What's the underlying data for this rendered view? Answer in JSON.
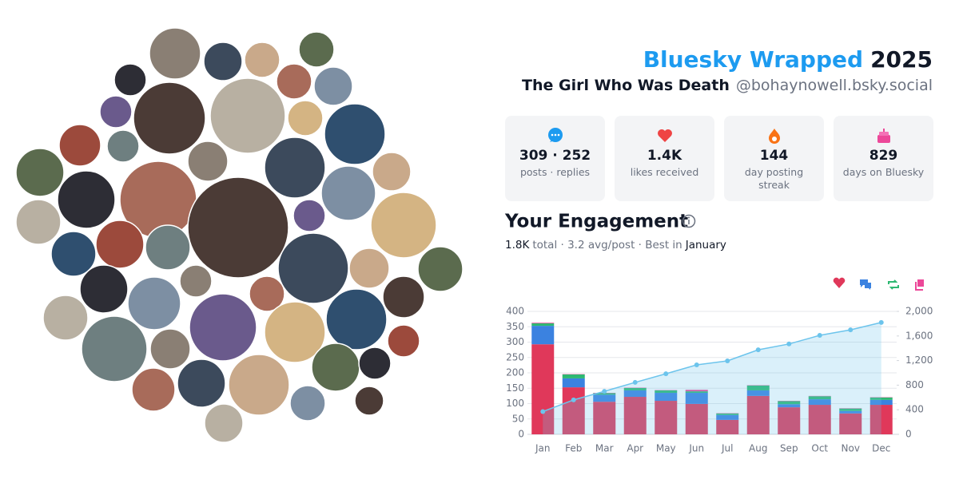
{
  "header": {
    "title_brand": "Bluesky Wrapped",
    "title_year": "2025",
    "display_name": "The Girl Who Was Death",
    "handle": "@bohaynowell.bsky.social"
  },
  "stats": [
    {
      "value": "309 · 252",
      "label": "posts · replies"
    },
    {
      "value": "1.4K",
      "label": "likes received"
    },
    {
      "value": "144",
      "label": "day posting streak"
    },
    {
      "value": "829",
      "label": "days on Bluesky"
    }
  ],
  "engagement": {
    "title": "Your Engagement",
    "total": "1.8K",
    "summary": "total · 3.2 avg/post · Best in",
    "best": "January"
  },
  "chart_data": {
    "type": "bar",
    "stacked": true,
    "categories": [
      "Jan",
      "Feb",
      "Mar",
      "Apr",
      "May",
      "Jun",
      "Jul",
      "Aug",
      "Sep",
      "Oct",
      "Nov",
      "Dec"
    ],
    "series": [
      {
        "color": "#e0385a",
        "values": [
          293,
          153,
          106,
          122,
          109,
          99,
          47,
          125,
          88,
          96,
          68,
          96
        ]
      },
      {
        "color": "#3b82e0",
        "values": [
          60,
          29,
          23,
          21,
          26,
          36,
          16,
          18,
          10,
          18,
          8,
          16
        ]
      },
      {
        "color": "#2eb872",
        "values": [
          8,
          13,
          5,
          8,
          8,
          5,
          5,
          16,
          10,
          10,
          8,
          8
        ]
      },
      {
        "color": "#ec4899",
        "values": [
          2,
          1,
          1,
          1,
          1,
          5,
          1,
          1,
          1,
          1,
          1,
          1
        ]
      },
      {
        "type": "line",
        "axis": "y2",
        "color": "#6cc4ec",
        "values": [
          370,
          560,
          700,
          845,
          985,
          1130,
          1195,
          1375,
          1470,
          1610,
          1700,
          1820
        ]
      }
    ],
    "ylim": [
      0,
      400
    ],
    "yticks": [
      0,
      50,
      100,
      150,
      200,
      250,
      300,
      350,
      400
    ],
    "y2lim": [
      0,
      2000
    ],
    "y2ticks": [
      0,
      400,
      800,
      {
        "value": 1200,
        "label": "1,200"
      },
      {
        "value": 1600,
        "label": "1,600"
      },
      {
        "value": 2000,
        "label": "2,000"
      }
    ],
    "grid": true
  }
}
